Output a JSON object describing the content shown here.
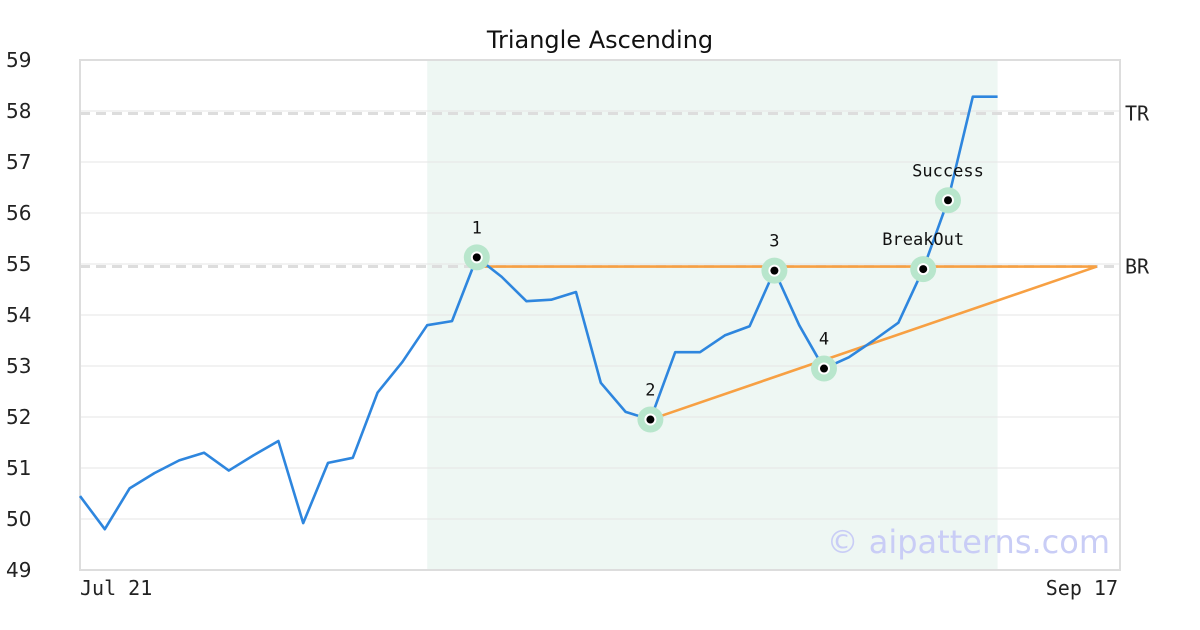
{
  "chart_data": {
    "type": "line",
    "title": "Triangle Ascending",
    "x_ticks": [
      "Jul 21",
      "Sep 17"
    ],
    "ylim": [
      49,
      59
    ],
    "y_ticks": [
      49,
      50,
      51,
      52,
      53,
      54,
      55,
      56,
      57,
      58,
      59
    ],
    "grid": true,
    "series": [
      {
        "values": [
          50.45,
          49.8,
          50.6,
          50.9,
          51.15,
          51.3,
          50.95,
          51.25,
          51.53,
          49.92,
          51.1,
          51.2,
          52.48,
          53.08,
          53.8,
          53.88,
          55.13,
          54.75,
          54.27,
          54.3,
          54.45,
          52.67,
          52.1,
          51.95,
          53.27,
          53.27,
          53.6,
          53.78,
          54.87,
          53.8,
          52.95,
          53.17,
          53.5,
          53.85,
          54.9,
          56.25,
          58.28,
          58.28
        ]
      }
    ],
    "levels": [
      {
        "label": "TR",
        "value": 57.95
      },
      {
        "label": "BR",
        "value": 54.95
      }
    ],
    "resistance_line": {
      "from_index": 16,
      "to_index": 41,
      "value": 54.95
    },
    "support_line": {
      "from_index": 23,
      "from_value": 51.95,
      "to_index": 41,
      "to_value": 54.95
    },
    "pattern_range": {
      "start_index": 14,
      "end_index": 37
    },
    "pattern_points": [
      {
        "label": "1",
        "index": 16,
        "value": 55.13
      },
      {
        "label": "2",
        "index": 23,
        "value": 51.95
      },
      {
        "label": "3",
        "index": 28,
        "value": 54.87
      },
      {
        "label": "4",
        "index": 30,
        "value": 52.95
      },
      {
        "label": "BreakOut",
        "index": 34,
        "value": 54.9
      },
      {
        "label": "Success",
        "index": 35,
        "value": 56.25
      }
    ],
    "colors": {
      "price": "#2e86de",
      "trendline": "#f7a043",
      "highlight": "#eef7f3",
      "marker_halo": "#b8e6cc",
      "grid": "#e6e6e6",
      "level_line": "#dddddd"
    }
  },
  "watermark": "© aipatterns.com"
}
